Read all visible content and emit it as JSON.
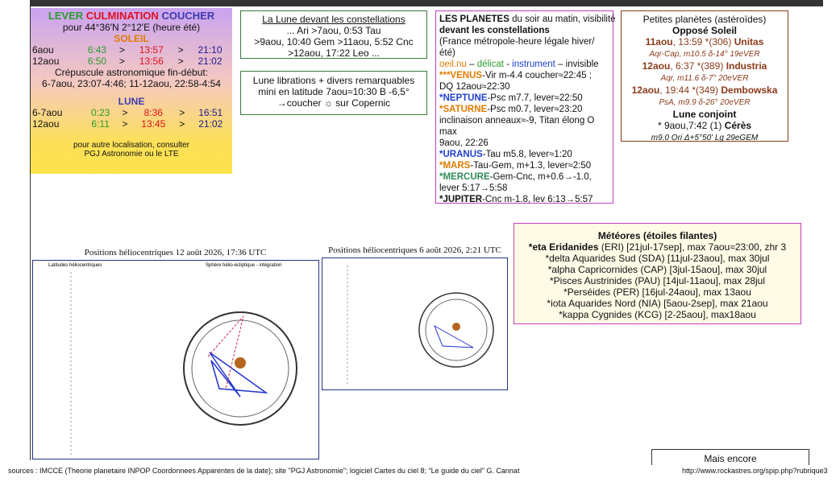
{
  "sun_box": {
    "header": [
      {
        "text": "LEVER",
        "color": "#2e9b2e"
      },
      {
        "text": "CULMINATION",
        "color": "#e0101f"
      },
      {
        "text": "COUCHER",
        "color": "#3b3bb0"
      }
    ],
    "location": "pour 44°36'N  2°12'E (heure été)",
    "soleil": "SOLEIL",
    "sun_rows": [
      [
        "6aou",
        "6:43",
        ">",
        "13:57",
        ">",
        "21:10"
      ],
      [
        "12aou",
        "6:50",
        ">",
        "13:56",
        ">",
        "21:02"
      ]
    ],
    "twilight": "Crépuscule astronomique fin-début:",
    "twilight_detail": "6-7aou, 23:07-4:46; 11-12aou, 22:58-4:54",
    "lune": "LUNE",
    "moon_rows": [
      [
        "6-7aou",
        "0:23",
        ">",
        "8:36",
        ">",
        "16:51"
      ],
      [
        "12aou",
        "6:11",
        ">",
        "13:45",
        ">",
        "21:02"
      ]
    ],
    "note": [
      "pour autre localisation, consulter",
      "PGJ Astronomie ou le LTE"
    ]
  },
  "constellations": {
    "title": "La Lune devant les constellations",
    "lines": [
      "... Ari >7aou, 0:53 Tau",
      ">9aou, 10:40 Gem >11aou, 5:52 Cnc",
      ">12aou, 17:22 Leo ..."
    ]
  },
  "librations": {
    "lines": [
      "Lune librations + divers remarquables",
      "mini en latitude 7aou≈10:30 B -6,5°",
      "→coucher ☼ sur Copernic"
    ]
  },
  "planets": {
    "lines": [
      [
        {
          "text": "LES PLANETES",
          "bold": true
        },
        {
          "text": " du soir au matin, visibilité"
        }
      ],
      [
        {
          "text": "devant les constellations",
          "bold": true
        }
      ],
      "(France métropole-heure légale hiver/été)",
      [
        {
          "text": "oeil.nu",
          "color": "#e07b00"
        },
        {
          "text": " – "
        },
        {
          "text": "délicat",
          "color": "#2e9b2e"
        },
        {
          "text": " - "
        },
        {
          "text": "instrument",
          "color": "#2040d0"
        },
        {
          "text": " – invisible"
        }
      ],
      [
        {
          "text": "***VENUS",
          "color": "#e07b00",
          "bold": true
        },
        {
          "text": "-Vir m-4.4 coucher≈22:45 ;"
        }
      ],
      "DQ 12aou≈22:30",
      [
        {
          "text": "*NEPTUNE",
          "color": "#2040d0",
          "bold": true
        },
        {
          "text": "-Psc m7.7, lever≈22:50"
        }
      ],
      [
        {
          "text": "*SATURNE",
          "color": "#e07b00",
          "bold": true
        },
        {
          "text": "-Psc m0.7, lever≈23:20"
        }
      ],
      "inclinaison anneaux≈-9, Titan élong O max",
      "9aou, 22:26",
      [
        {
          "text": "*URANUS",
          "color": "#2040d0",
          "bold": true
        },
        {
          "text": "-Tau m5.8, lever≈1:20"
        }
      ],
      [
        {
          "text": "*MARS",
          "color": "#e07b00",
          "bold": true
        },
        {
          "text": "-Tau-Gem, m+1.3, lever≈2:50"
        }
      ],
      [
        {
          "text": "*MERCURE",
          "color": "#2e8b57",
          "bold": true
        },
        {
          "text": "-Gem-Cnc, m+0.6→-1.0,"
        }
      ],
      "lever 5:17→5:58",
      [
        {
          "text": "*JUPITER",
          "bold": true
        },
        {
          "text": "-Cnc m-1.8, lev 6:13→5:57"
        }
      ]
    ]
  },
  "asteroids": {
    "lines": [
      "Petites planètes (astéroïdes)",
      [
        {
          "text": "Opposé Soleil",
          "bold": true
        }
      ],
      [
        {
          "text": "11aou",
          "color": "#8b3a1a",
          "bold": true
        },
        {
          "text": ", 13:59 *(306) ",
          "color": "#8b3a1a"
        },
        {
          "text": "Unitas",
          "color": "#8b3a1a",
          "bold": true
        }
      ],
      [
        {
          "text": "Aqr-Cap, m10.5  δ-14° 19eVER",
          "color": "#8b3a1a",
          "small": true
        }
      ],
      [
        {
          "text": "12aou",
          "color": "#8b3a1a",
          "bold": true
        },
        {
          "text": ", 6:37 *(389) ",
          "color": "#8b3a1a"
        },
        {
          "text": "Industria",
          "color": "#8b3a1a",
          "bold": true
        }
      ],
      [
        {
          "text": "Aqr, m11.6  δ-7° 20eVER",
          "color": "#8b3a1a",
          "small": true
        }
      ],
      [
        {
          "text": "12aou",
          "color": "#8b3a1a",
          "bold": true
        },
        {
          "text": ", 19:44 *(349) ",
          "color": "#8b3a1a"
        },
        {
          "text": "Dembowska",
          "color": "#8b3a1a",
          "bold": true
        }
      ],
      [
        {
          "text": "PsA, m9.9  δ-26° 20eVER",
          "color": "#8b3a1a",
          "small": true
        }
      ],
      [
        {
          "text": "Lune conjoint",
          "bold": true
        }
      ],
      [
        {
          "text": "* 9aou,7:42 (1) "
        },
        {
          "text": "Cérès",
          "bold": true
        }
      ],
      [
        {
          "text": "m9.0 Ori Δ+5°50' Lg 29eGEM",
          "small": true
        }
      ]
    ]
  },
  "meteors": {
    "title": "Météores (étoiles filantes)",
    "lines": [
      [
        {
          "text": "*eta Eridanides",
          "bold": true
        },
        {
          "text": " (ERI) [21jul-17sep], max 7aou≈23:00, zhr 3"
        }
      ],
      "*delta Aquarides Sud (SDA) [11jul-23aou], max 30jul",
      "*alpha Capricornides (CAP) [3jul-15aou], max 30jul",
      "*Pisces Austrinides (PAU) [14jul-11aou], max 28jul",
      "*Perséides (PER) [16jul-24aou], max 13aou",
      "*iota Aquarides Nord (NIA) [5aou-2sep], max 21aou",
      "*kappa Cygnides (KCG) [2-25aou], max18aou"
    ]
  },
  "chart1": {
    "title": "Positions héliocentriques 12 août 2026, 17:36 UTC",
    "left_label": "Latitudes héliocentriques",
    "right_label": "Sphère hélio-écliptique - intégration"
  },
  "chart2": {
    "title": "Positions héliocentriques 6 août 2026, 2:21 UTC"
  },
  "more": "Mais encore",
  "footer": {
    "sources": "sources : IMCCE (Theorie planetaire INPOP Coordonnees Apparentes de la date); site \"PGJ Astronomie\"; logiciel  Cartes du ciel 8; \"Le guide du ciel\" G. Cannat",
    "url": "http://www.rockastres.org/spip.php?rubrique3"
  }
}
